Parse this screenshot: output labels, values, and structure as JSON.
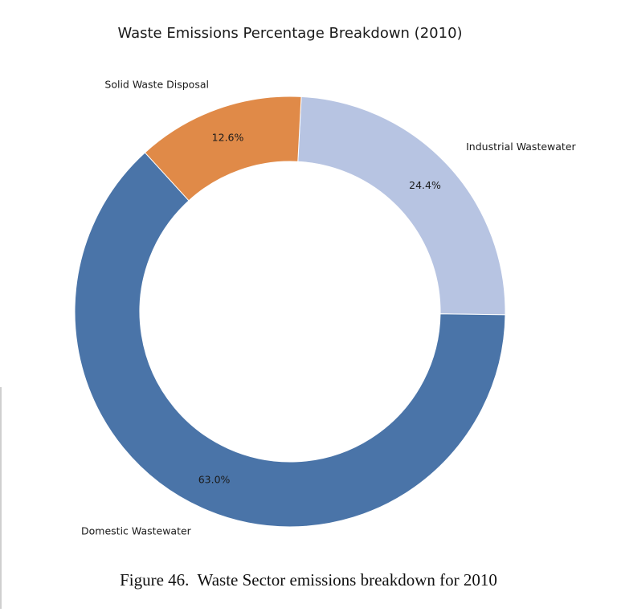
{
  "chart_data": {
    "type": "pie",
    "donut": true,
    "title": "Waste Emissions Percentage Breakdown (2010)",
    "slices": [
      {
        "label": "Industrial Wastewater",
        "value": 24.4,
        "value_label": "24.4%",
        "color": "#b7c4e2"
      },
      {
        "label": "Domestic Wastewater",
        "value": 63.0,
        "value_label": "63.0%",
        "color": "#4a74a8"
      },
      {
        "label": "Solid Waste Disposal",
        "value": 12.6,
        "value_label": "12.6%",
        "color": "#e08a48"
      }
    ],
    "start_angle_deg": 87,
    "direction": "clockwise"
  },
  "caption": "Figure 46.  Waste Sector emissions breakdown for 2010"
}
